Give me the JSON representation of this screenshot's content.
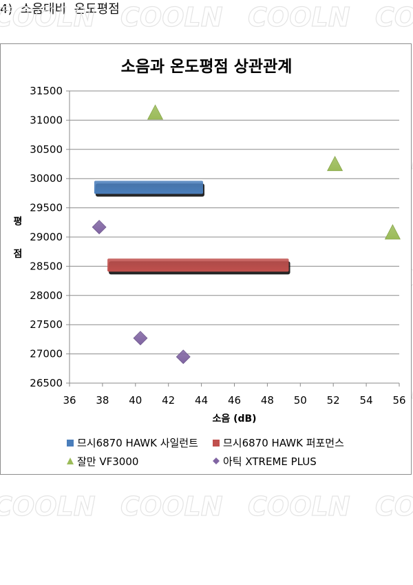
{
  "page": {
    "heading": "4)  소음대비  온도평점",
    "watermark": "COOLN"
  },
  "chart_data": {
    "type": "scatter",
    "title": "소음과 온도평점 상관관계",
    "xlabel": "소음 (dB)",
    "ylabel": "평점",
    "xlim": [
      36,
      56
    ],
    "ylim": [
      26500,
      31500
    ],
    "x_ticks": [
      "36",
      "38",
      "40",
      "42",
      "44",
      "46",
      "48",
      "50",
      "52",
      "54",
      "56"
    ],
    "y_ticks": [
      "26500",
      "27000",
      "27500",
      "28000",
      "28500",
      "29000",
      "29500",
      "30000",
      "30500",
      "31000",
      "31500"
    ],
    "grid": true,
    "legend_position": "bottom",
    "series": [
      {
        "name": "므시6870 HAWK 사일런트",
        "marker": "bar",
        "color": "#4a7ebb",
        "points": [
          {
            "x": 37.5,
            "y": 29850
          },
          {
            "x": 44.1,
            "y": 29850
          }
        ]
      },
      {
        "name": "므시6870 HAWK 퍼포먼스",
        "marker": "bar",
        "color": "#c0504d",
        "points": [
          {
            "x": 38.3,
            "y": 28520
          },
          {
            "x": 49.3,
            "y": 28520
          }
        ]
      },
      {
        "name": "잘만 VF3000",
        "marker": "triangle",
        "color": "#9bbb59",
        "points": [
          {
            "x": 41.2,
            "y": 31120
          },
          {
            "x": 52.1,
            "y": 30240
          },
          {
            "x": 55.6,
            "y": 29070
          }
        ]
      },
      {
        "name": "아틱 XTREME PLUS",
        "marker": "diamond",
        "color": "#8064a2",
        "points": [
          {
            "x": 37.8,
            "y": 29170
          },
          {
            "x": 40.3,
            "y": 27270
          },
          {
            "x": 42.9,
            "y": 26950
          }
        ]
      }
    ]
  }
}
